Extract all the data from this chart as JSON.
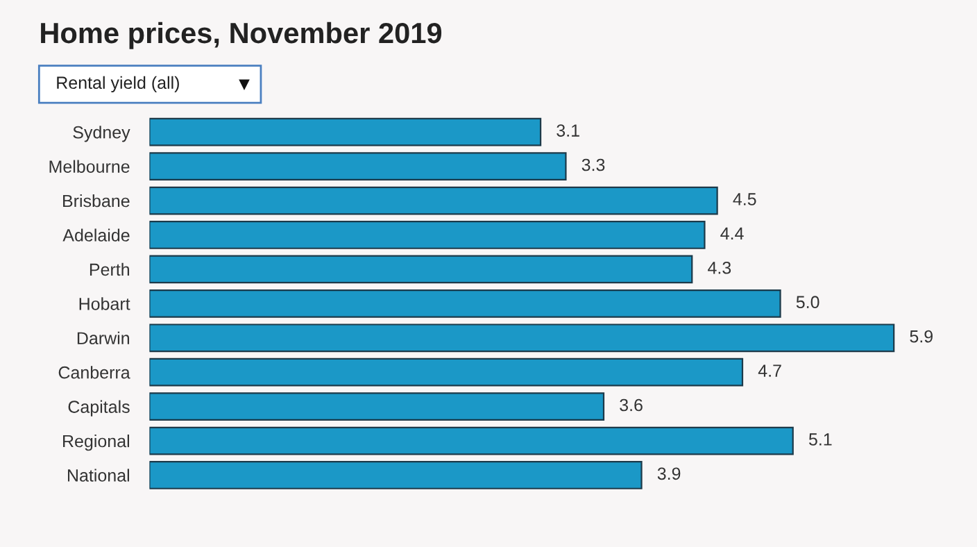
{
  "chart_data": {
    "type": "bar",
    "orientation": "horizontal",
    "title": "Home prices, November 2019",
    "subtitle": "Rental yield (all)",
    "categories": [
      "Sydney",
      "Melbourne",
      "Brisbane",
      "Adelaide",
      "Perth",
      "Hobart",
      "Darwin",
      "Canberra",
      "Capitals",
      "Regional",
      "National"
    ],
    "values": [
      3.1,
      3.3,
      4.5,
      4.4,
      4.3,
      5.0,
      5.9,
      4.7,
      3.6,
      5.1,
      3.9
    ],
    "value_labels": [
      "3.1",
      "3.3",
      "4.5",
      "4.4",
      "4.3",
      "5.0",
      "5.9",
      "4.7",
      "3.6",
      "5.1",
      "3.9"
    ],
    "color": "#1b98c7",
    "grid": false,
    "legend": false,
    "tick_labels": "y"
  }
}
